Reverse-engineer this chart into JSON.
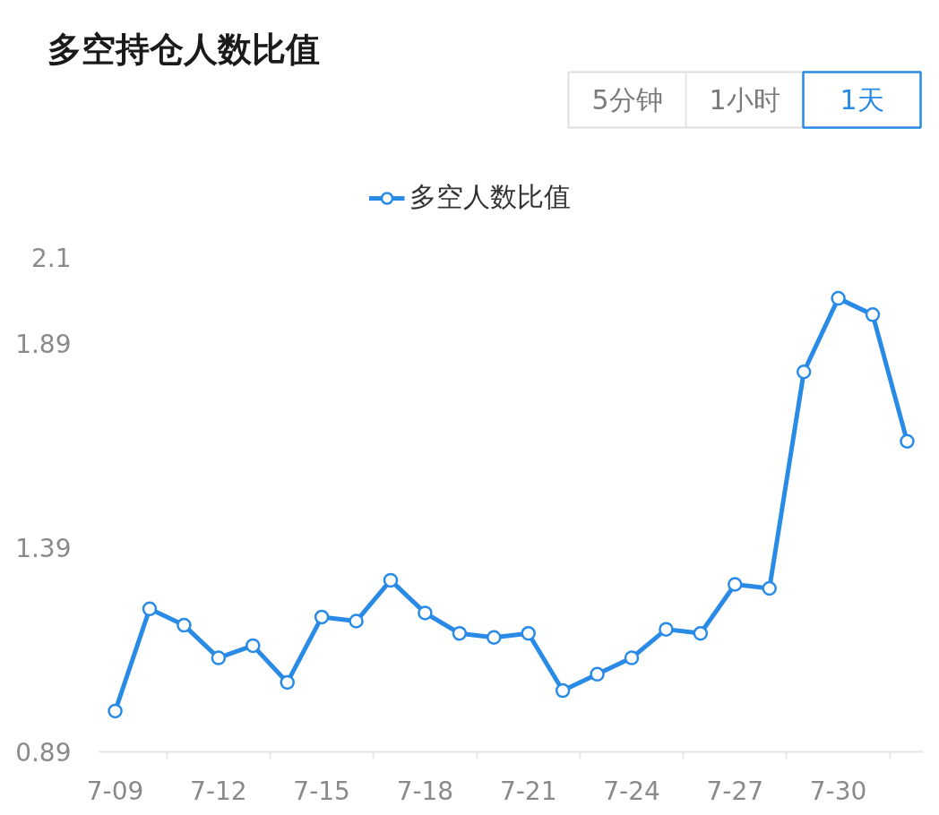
{
  "chart_data": {
    "type": "line",
    "title": "多空持仓人数比值",
    "annotations": [
      "5分钟",
      "1小时",
      "1天"
    ],
    "categories": [
      "7-09",
      null,
      null,
      "7-12",
      null,
      null,
      "7-15",
      null,
      null,
      "7-18",
      null,
      null,
      "7-21",
      null,
      null,
      "7-24",
      null,
      null,
      "7-27",
      null,
      null,
      "7-30",
      null,
      null
    ],
    "series": [
      {
        "name": "多空人数比值",
        "color": "#2a8be6",
        "values": [
          0.99,
          1.24,
          1.2,
          1.12,
          1.15,
          1.06,
          1.22,
          1.21,
          1.31,
          1.23,
          1.18,
          1.17,
          1.18,
          1.04,
          1.08,
          1.12,
          1.19,
          1.18,
          1.3,
          1.29,
          1.82,
          2.0,
          1.96,
          1.65
        ]
      }
    ],
    "ylim": [
      0.89,
      2.1
    ],
    "yticks": [
      0.89,
      1.39,
      1.89,
      2.1
    ],
    "legend": "top",
    "marker": "circle",
    "line_style": "solid",
    "grid": false
  }
}
